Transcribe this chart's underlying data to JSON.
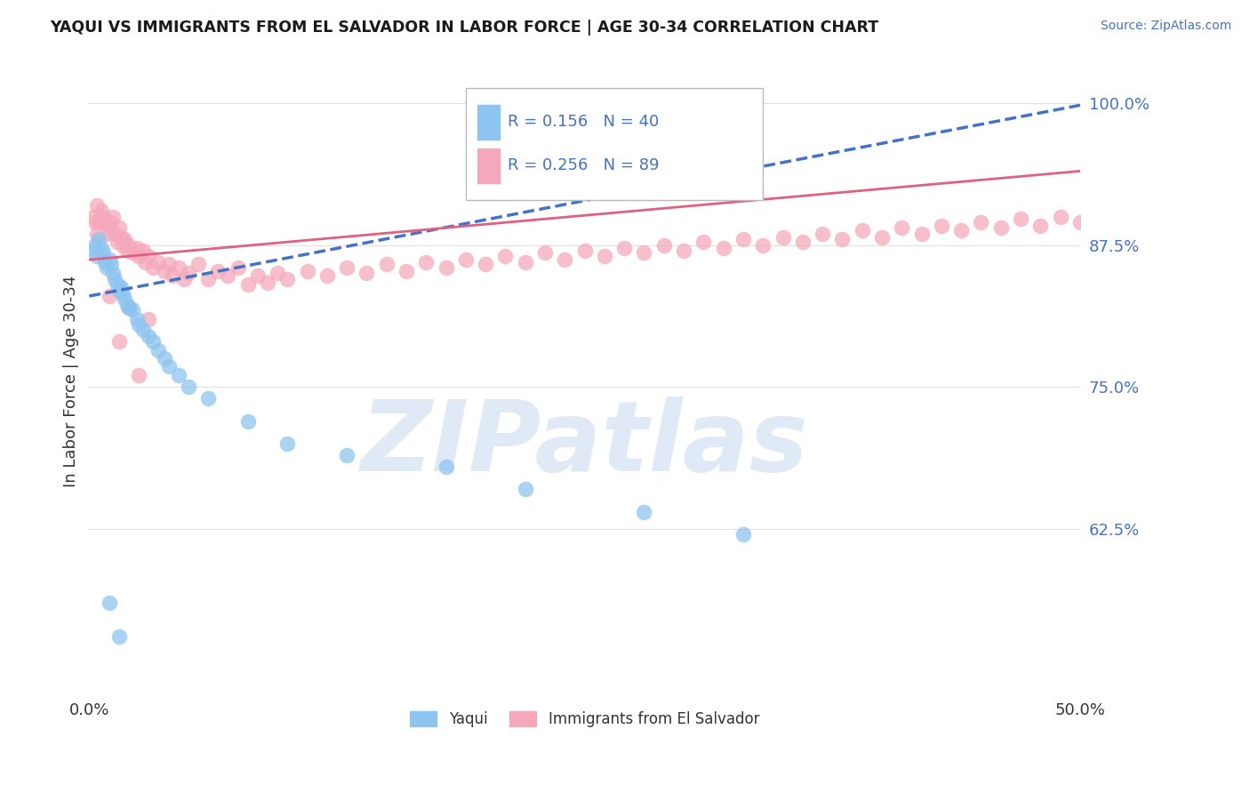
{
  "title": "YAQUI VS IMMIGRANTS FROM EL SALVADOR IN LABOR FORCE | AGE 30-34 CORRELATION CHART",
  "source_text": "Source: ZipAtlas.com",
  "ylabel": "In Labor Force | Age 30-34",
  "xlim": [
    0.0,
    0.5
  ],
  "ylim": [
    0.48,
    1.03
  ],
  "xtick_vals": [
    0.0,
    0.25,
    0.5
  ],
  "xtick_labels": [
    "0.0%",
    "",
    "50.0%"
  ],
  "ytick_vals_right": [
    0.625,
    0.75,
    0.875,
    1.0
  ],
  "ytick_labels_right": [
    "62.5%",
    "75.0%",
    "87.5%",
    "100.0%"
  ],
  "yaqui_color": "#8EC4F0",
  "salvador_color": "#F5A8BC",
  "yaqui_R": 0.156,
  "yaqui_N": 40,
  "salvador_R": 0.256,
  "salvador_N": 89,
  "legend_label_yaqui": "Yaqui",
  "legend_label_salvador": "Immigrants from El Salvador",
  "watermark": "ZIPatlas",
  "watermark_color": "#C8D8F0",
  "trend_blue_color": "#4472C4",
  "trend_pink_color": "#E06080",
  "grid_color": "#E0E0E0",
  "yaqui_x": [
    0.002,
    0.003,
    0.004,
    0.005,
    0.006,
    0.007,
    0.008,
    0.009,
    0.01,
    0.011,
    0.012,
    0.013,
    0.014,
    0.015,
    0.016,
    0.017,
    0.018,
    0.019,
    0.02,
    0.022,
    0.024,
    0.025,
    0.027,
    0.03,
    0.032,
    0.035,
    0.038,
    0.04,
    0.045,
    0.05,
    0.06,
    0.08,
    0.1,
    0.13,
    0.18,
    0.22,
    0.28,
    0.33,
    0.01,
    0.015
  ],
  "yaqui_y": [
    0.87,
    0.875,
    0.865,
    0.88,
    0.872,
    0.868,
    0.86,
    0.855,
    0.862,
    0.858,
    0.85,
    0.845,
    0.84,
    0.835,
    0.838,
    0.832,
    0.828,
    0.822,
    0.82,
    0.818,
    0.81,
    0.805,
    0.8,
    0.795,
    0.79,
    0.782,
    0.775,
    0.768,
    0.76,
    0.75,
    0.74,
    0.72,
    0.7,
    0.69,
    0.68,
    0.66,
    0.64,
    0.62,
    0.56,
    0.53
  ],
  "salvador_x": [
    0.002,
    0.003,
    0.004,
    0.004,
    0.005,
    0.006,
    0.007,
    0.008,
    0.009,
    0.01,
    0.011,
    0.012,
    0.013,
    0.014,
    0.015,
    0.016,
    0.017,
    0.018,
    0.019,
    0.02,
    0.022,
    0.024,
    0.025,
    0.027,
    0.028,
    0.03,
    0.032,
    0.035,
    0.038,
    0.04,
    0.042,
    0.045,
    0.048,
    0.05,
    0.055,
    0.06,
    0.065,
    0.07,
    0.075,
    0.08,
    0.085,
    0.09,
    0.095,
    0.1,
    0.11,
    0.12,
    0.13,
    0.14,
    0.15,
    0.16,
    0.17,
    0.18,
    0.19,
    0.2,
    0.21,
    0.22,
    0.23,
    0.24,
    0.25,
    0.26,
    0.27,
    0.28,
    0.29,
    0.3,
    0.31,
    0.32,
    0.33,
    0.34,
    0.35,
    0.36,
    0.37,
    0.38,
    0.39,
    0.4,
    0.41,
    0.42,
    0.43,
    0.44,
    0.45,
    0.46,
    0.47,
    0.48,
    0.49,
    0.5,
    0.02,
    0.03,
    0.025,
    0.015,
    0.01
  ],
  "salvador_y": [
    0.9,
    0.895,
    0.91,
    0.885,
    0.895,
    0.905,
    0.9,
    0.895,
    0.885,
    0.89,
    0.895,
    0.9,
    0.885,
    0.878,
    0.89,
    0.882,
    0.875,
    0.88,
    0.87,
    0.875,
    0.868,
    0.872,
    0.865,
    0.87,
    0.86,
    0.865,
    0.855,
    0.86,
    0.852,
    0.858,
    0.848,
    0.855,
    0.845,
    0.85,
    0.858,
    0.845,
    0.852,
    0.848,
    0.855,
    0.84,
    0.848,
    0.842,
    0.85,
    0.845,
    0.852,
    0.848,
    0.855,
    0.85,
    0.858,
    0.852,
    0.86,
    0.855,
    0.862,
    0.858,
    0.865,
    0.86,
    0.868,
    0.862,
    0.87,
    0.865,
    0.872,
    0.868,
    0.875,
    0.87,
    0.878,
    0.872,
    0.88,
    0.875,
    0.882,
    0.878,
    0.885,
    0.88,
    0.888,
    0.882,
    0.89,
    0.885,
    0.892,
    0.888,
    0.895,
    0.89,
    0.898,
    0.892,
    0.9,
    0.895,
    0.82,
    0.81,
    0.76,
    0.79,
    0.83
  ],
  "trend_yaqui_x0": 0.0,
  "trend_yaqui_y0": 0.83,
  "trend_yaqui_x1": 0.5,
  "trend_yaqui_y1": 0.998,
  "trend_salv_x0": 0.0,
  "trend_salv_y0": 0.862,
  "trend_salv_x1": 0.5,
  "trend_salv_y1": 0.94
}
